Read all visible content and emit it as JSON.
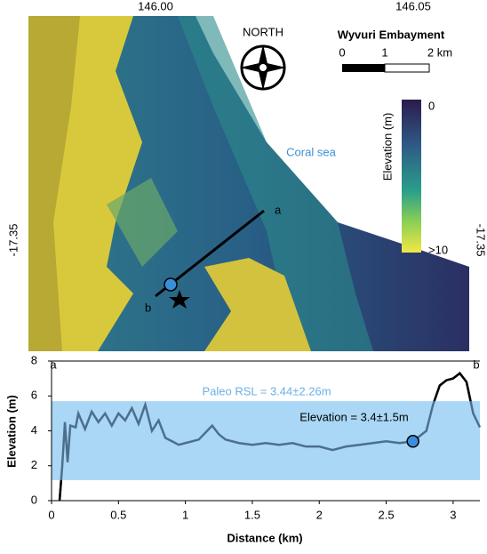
{
  "map": {
    "lon_labels": [
      "146.00",
      "146.05"
    ],
    "lat_label": "-17.35",
    "north": "NORTH",
    "title": "Wyvuri Embayment",
    "scale_labels": [
      "0",
      "1",
      "2 km"
    ],
    "colorbar_title": "Elevation (m)",
    "colorbar_labels": [
      "0",
      ">10"
    ],
    "sea_label": "Coral sea"
  },
  "chart_data": {
    "type": "line",
    "ylabel": "Elevation (m)",
    "xlabel": "Distance (km)",
    "ends": [
      "a",
      "b"
    ],
    "x": [
      0.06,
      0.08,
      0.1,
      0.12,
      0.14,
      0.18,
      0.2,
      0.25,
      0.3,
      0.35,
      0.4,
      0.45,
      0.5,
      0.55,
      0.6,
      0.65,
      0.7,
      0.75,
      0.8,
      0.85,
      0.9,
      0.95,
      1.0,
      1.05,
      1.1,
      1.15,
      1.2,
      1.25,
      1.3,
      1.4,
      1.5,
      1.6,
      1.7,
      1.8,
      1.9,
      2.0,
      2.1,
      2.2,
      2.3,
      2.4,
      2.5,
      2.6,
      2.7,
      2.8,
      2.85,
      2.9,
      2.95,
      3.0,
      3.05,
      3.1,
      3.15,
      3.2
    ],
    "series": [
      {
        "color": "#4d6f8c",
        "values": [
          0,
          2.0,
          4.5,
          2.2,
          4.3,
          4.2,
          5.0,
          4.1,
          5.1,
          4.5,
          5.0,
          4.3,
          5.0,
          4.6,
          5.3,
          4.4,
          5.5,
          4.0,
          4.6,
          3.6,
          3.4,
          3.2,
          3.3,
          3.4,
          3.5,
          3.9,
          4.3,
          3.8,
          3.5,
          3.3,
          3.2,
          3.3,
          3.2,
          3.3,
          3.1,
          3.1,
          2.9,
          3.1,
          3.2,
          3.3,
          3.4,
          3.3,
          3.4,
          4.0,
          5.5,
          6.6,
          6.9,
          7.0,
          7.3,
          6.8,
          5.0,
          4.2
        ]
      }
    ],
    "band": {
      "center": 3.44,
      "half_width": 2.26,
      "color": "#a9d7f5",
      "label": "Paleo RSL = 3.44±2.26m"
    },
    "point": {
      "x": 2.7,
      "y": 3.4,
      "color": "#3a8fdc",
      "label": "Elevation = 3.4±1.5m"
    },
    "xlim": [
      0,
      3.2
    ],
    "ylim": [
      0,
      8
    ],
    "xticks": [
      0,
      0.5,
      1,
      1.5,
      2,
      2.5,
      3
    ],
    "yticks": [
      0,
      2,
      4,
      6,
      8
    ]
  }
}
